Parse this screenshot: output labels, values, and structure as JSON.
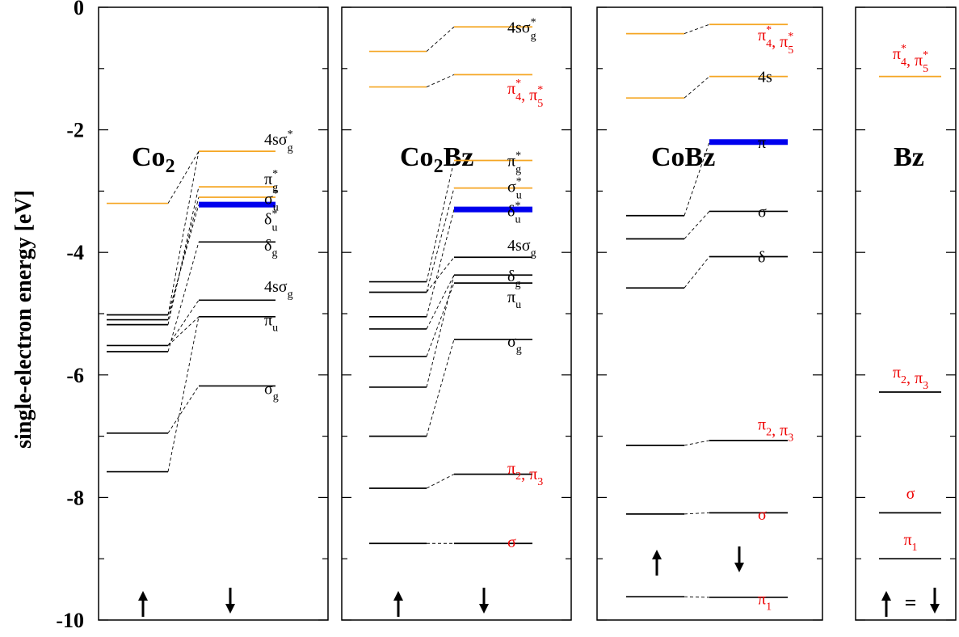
{
  "chart_data": {
    "type": "energy-level-diagram",
    "ylabel": "single-electron energy [eV]",
    "ylim": [
      -10,
      0
    ],
    "yticks": [
      0,
      -2,
      -4,
      -6,
      -8,
      -10
    ],
    "colors": {
      "black": "#000000",
      "orange": "#f5a623",
      "blue": "#0000ee",
      "red": "#ee0000"
    },
    "panels": [
      {
        "title": "Co",
        "title_sub": "2",
        "title_rest": "",
        "levels": [
          {
            "spin": "up",
            "e": -3.2,
            "color": "orange"
          },
          {
            "spin": "up",
            "e": -5.02,
            "color": "black"
          },
          {
            "spin": "up",
            "e": -5.1,
            "color": "black"
          },
          {
            "spin": "up",
            "e": -5.18,
            "color": "black"
          },
          {
            "spin": "up",
            "e": -5.52,
            "color": "black"
          },
          {
            "spin": "up",
            "e": -5.62,
            "color": "black"
          },
          {
            "spin": "up",
            "e": -6.95,
            "color": "black"
          },
          {
            "spin": "up",
            "e": -7.58,
            "color": "black"
          },
          {
            "spin": "down",
            "e": -2.35,
            "color": "orange"
          },
          {
            "spin": "down",
            "e": -2.93,
            "color": "orange"
          },
          {
            "spin": "down",
            "e": -3.1,
            "color": "orange"
          },
          {
            "spin": "down",
            "e": -3.22,
            "color": "blue",
            "thick": true
          },
          {
            "spin": "down",
            "e": -3.83,
            "color": "black"
          },
          {
            "spin": "down",
            "e": -4.78,
            "color": "black"
          },
          {
            "spin": "down",
            "e": -5.05,
            "color": "black"
          },
          {
            "spin": "down",
            "e": -6.18,
            "color": "black"
          }
        ],
        "connectors": [
          [
            -5.02,
            -3.22
          ],
          [
            -5.1,
            -3.1
          ],
          [
            -5.18,
            -2.93
          ],
          [
            -5.02,
            -2.35
          ],
          [
            -5.52,
            -4.78
          ],
          [
            -5.62,
            -3.83
          ],
          [
            -5.52,
            -5.05
          ],
          [
            -6.95,
            -6.18
          ],
          [
            -7.58,
            -5.05
          ],
          [
            -3.2,
            -2.35
          ]
        ],
        "labels": [
          {
            "e": -2.15,
            "text": "4sσ",
            "sub": "g",
            "sup": "*",
            "color": "black"
          },
          {
            "e": -2.8,
            "text": "π",
            "sub": "g",
            "sup": "*",
            "color": "black"
          },
          {
            "e": -3.12,
            "text": "σ",
            "sub": "u",
            "sup": "*",
            "color": "black"
          },
          {
            "e": -3.45,
            "text": "δ",
            "sub": "u",
            "sup": "*",
            "color": "black"
          },
          {
            "e": -3.88,
            "text": "δ",
            "sub": "g",
            "sup": "",
            "color": "black"
          },
          {
            "e": -4.55,
            "text": "4sσ",
            "sub": "g",
            "sup": "",
            "color": "black"
          },
          {
            "e": -5.1,
            "text": "π",
            "sub": "u",
            "sup": "",
            "color": "black"
          },
          {
            "e": -6.22,
            "text": "σ",
            "sub": "g",
            "sup": "",
            "color": "black"
          }
        ],
        "arrows": "separate"
      },
      {
        "title": "Co",
        "title_sub": "2",
        "title_rest": "Bz",
        "levels": [
          {
            "spin": "up",
            "e": -0.72,
            "color": "orange"
          },
          {
            "spin": "up",
            "e": -1.3,
            "color": "orange"
          },
          {
            "spin": "up",
            "e": -4.48,
            "color": "black"
          },
          {
            "spin": "up",
            "e": -4.65,
            "color": "black"
          },
          {
            "spin": "up",
            "e": -5.05,
            "color": "black"
          },
          {
            "spin": "up",
            "e": -5.25,
            "color": "black"
          },
          {
            "spin": "up",
            "e": -5.7,
            "color": "black"
          },
          {
            "spin": "up",
            "e": -6.2,
            "color": "black"
          },
          {
            "spin": "up",
            "e": -7.0,
            "color": "black"
          },
          {
            "spin": "up",
            "e": -7.85,
            "color": "black"
          },
          {
            "spin": "up",
            "e": -8.75,
            "color": "black"
          },
          {
            "spin": "down",
            "e": -0.32,
            "color": "orange"
          },
          {
            "spin": "down",
            "e": -1.1,
            "color": "orange"
          },
          {
            "spin": "down",
            "e": -2.5,
            "color": "orange"
          },
          {
            "spin": "down",
            "e": -2.95,
            "color": "orange"
          },
          {
            "spin": "down",
            "e": -3.3,
            "color": "blue",
            "thick": true
          },
          {
            "spin": "down",
            "e": -4.08,
            "color": "black"
          },
          {
            "spin": "down",
            "e": -4.37,
            "color": "black"
          },
          {
            "spin": "down",
            "e": -4.5,
            "color": "black"
          },
          {
            "spin": "down",
            "e": -5.42,
            "color": "black"
          },
          {
            "spin": "down",
            "e": -7.62,
            "color": "black"
          },
          {
            "spin": "down",
            "e": -8.75,
            "color": "black"
          }
        ],
        "connectors": [
          [
            -0.72,
            -0.32
          ],
          [
            -1.3,
            -1.1
          ],
          [
            -4.48,
            -2.5
          ],
          [
            -4.65,
            -2.95
          ],
          [
            -4.65,
            -4.08
          ],
          [
            -5.05,
            -3.3
          ],
          [
            -5.25,
            -4.37
          ],
          [
            -5.7,
            -4.5
          ],
          [
            -6.2,
            -4.37
          ],
          [
            -7.0,
            -5.42
          ],
          [
            -7.85,
            -7.62
          ],
          [
            -8.75,
            -8.75
          ]
        ],
        "labels": [
          {
            "e": -0.32,
            "text": "4sσ",
            "sub": "g",
            "sup": "*",
            "color": "black"
          },
          {
            "e": -1.32,
            "text": "π",
            "sub": "4",
            "sup": "*",
            "text2": ", π",
            "sub2": "5",
            "sup2": "*",
            "color": "red"
          },
          {
            "e": -2.5,
            "text": "π",
            "sub": "g",
            "sup": "*",
            "color": "black"
          },
          {
            "e": -2.92,
            "text": "σ",
            "sub": "u",
            "sup": "*",
            "color": "black"
          },
          {
            "e": -3.32,
            "text": "δ",
            "sub": "u",
            "sup": "*",
            "color": "black"
          },
          {
            "e": -3.88,
            "text": "4sσ",
            "sub": "g",
            "sup": "",
            "color": "black"
          },
          {
            "e": -4.38,
            "text": "δ",
            "sub": "g",
            "sup": "",
            "color": "black"
          },
          {
            "e": -4.72,
            "text": "π",
            "sub": "u",
            "sup": "",
            "color": "black"
          },
          {
            "e": -5.45,
            "text": "σ",
            "sub": "g",
            "sup": "",
            "color": "black"
          },
          {
            "e": -7.52,
            "text": "π",
            "sub": "2",
            "sup": "",
            "text2": ", π",
            "sub2": "3",
            "sup2": "",
            "color": "red"
          },
          {
            "e": -8.72,
            "text": "σ",
            "sub": "",
            "sup": "",
            "color": "red"
          }
        ],
        "arrows": "separate"
      },
      {
        "title": "CoBz",
        "title_sub": "",
        "title_rest": "",
        "levels": [
          {
            "spin": "up",
            "e": -0.43,
            "color": "orange"
          },
          {
            "spin": "up",
            "e": -1.48,
            "color": "orange"
          },
          {
            "spin": "up",
            "e": -3.4,
            "color": "black"
          },
          {
            "spin": "up",
            "e": -3.78,
            "color": "black"
          },
          {
            "spin": "up",
            "e": -4.58,
            "color": "black"
          },
          {
            "spin": "up",
            "e": -7.15,
            "color": "black"
          },
          {
            "spin": "up",
            "e": -8.27,
            "color": "black"
          },
          {
            "spin": "up",
            "e": -9.62,
            "color": "black"
          },
          {
            "spin": "down",
            "e": -0.28,
            "color": "orange"
          },
          {
            "spin": "down",
            "e": -1.13,
            "color": "orange"
          },
          {
            "spin": "down",
            "e": -2.2,
            "color": "blue",
            "thick": true
          },
          {
            "spin": "down",
            "e": -3.33,
            "color": "black"
          },
          {
            "spin": "down",
            "e": -4.07,
            "color": "black"
          },
          {
            "spin": "down",
            "e": -7.07,
            "color": "black"
          },
          {
            "spin": "down",
            "e": -8.25,
            "color": "black"
          },
          {
            "spin": "down",
            "e": -9.63,
            "color": "black"
          }
        ],
        "connectors": [
          [
            -0.43,
            -0.28
          ],
          [
            -1.48,
            -1.13
          ],
          [
            -3.4,
            -2.2
          ],
          [
            -3.78,
            -3.33
          ],
          [
            -4.58,
            -4.07
          ],
          [
            -7.15,
            -7.07
          ],
          [
            -8.27,
            -8.25
          ],
          [
            -9.62,
            -9.63
          ]
        ],
        "labels": [
          {
            "e": -0.45,
            "text": "π",
            "sub": "4",
            "sup": "*",
            "text2": ", π",
            "sub2": "5",
            "sup2": "*",
            "color": "red"
          },
          {
            "e": -1.13,
            "text": "4s",
            "sub": "",
            "sup": "",
            "color": "black"
          },
          {
            "e": -2.2,
            "text": "π",
            "sub": "",
            "sup": "",
            "color": "black"
          },
          {
            "e": -3.33,
            "text": "σ",
            "sub": "",
            "sup": "",
            "color": "black"
          },
          {
            "e": -4.07,
            "text": "δ",
            "sub": "",
            "sup": "",
            "color": "black"
          },
          {
            "e": -6.8,
            "text": "π",
            "sub": "2",
            "sup": "",
            "text2": ", π",
            "sub2": "3",
            "sup2": "",
            "color": "red"
          },
          {
            "e": -8.27,
            "text": "σ",
            "sub": "",
            "sup": "",
            "color": "red"
          },
          {
            "e": -9.65,
            "text": "π",
            "sub": "1",
            "sup": "",
            "color": "red"
          }
        ],
        "arrows": "separate-high"
      },
      {
        "title": "Bz",
        "title_sub": "",
        "title_rest": "",
        "levels": [
          {
            "spin": "both",
            "e": -1.13,
            "color": "orange"
          },
          {
            "spin": "both",
            "e": -6.28,
            "color": "black"
          },
          {
            "spin": "both",
            "e": -8.25,
            "color": "black"
          },
          {
            "spin": "both",
            "e": -9.0,
            "color": "black"
          }
        ],
        "connectors": [],
        "labels": [
          {
            "e": -0.75,
            "text": "π",
            "sub": "4",
            "sup": "*",
            "text2": ", π",
            "sub2": "5",
            "sup2": "*",
            "color": "red"
          },
          {
            "e": -5.95,
            "text": "π",
            "sub": "2",
            "sup": "",
            "text2": ", π",
            "sub2": "3",
            "sup2": "",
            "color": "red"
          },
          {
            "e": -7.93,
            "text": "σ",
            "sub": "",
            "sup": "",
            "color": "red"
          },
          {
            "e": -8.68,
            "text": "π",
            "sub": "1",
            "sup": "",
            "color": "red"
          }
        ],
        "arrows": "equal",
        "equal_sign": "="
      }
    ]
  }
}
